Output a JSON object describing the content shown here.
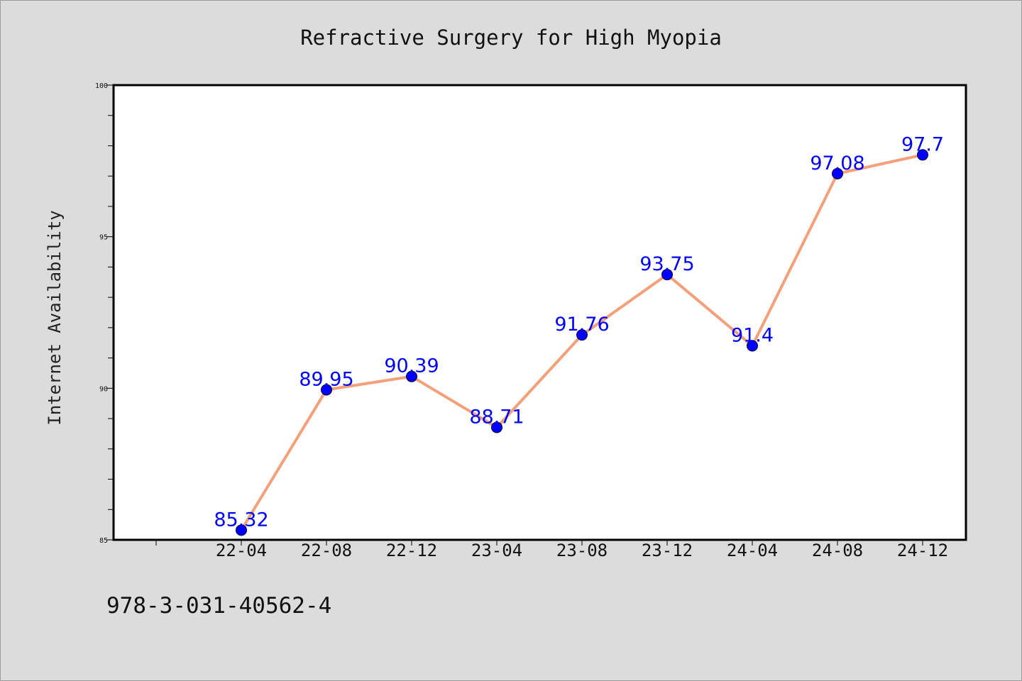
{
  "chart_data": {
    "type": "line",
    "title": "Refractive Surgery for High Myopia",
    "ylabel": "Internet Availability",
    "xlabel": "",
    "categories": [
      "22-04",
      "22-08",
      "22-12",
      "23-04",
      "23-08",
      "23-12",
      "24-04",
      "24-08",
      "24-12"
    ],
    "values": [
      85.32,
      89.95,
      90.39,
      88.71,
      91.76,
      93.75,
      91.4,
      97.08,
      97.7
    ],
    "data_labels": [
      "85.32",
      "89.95",
      "90.39",
      "88.71",
      "91.76",
      "93.75",
      "91.4",
      "97.08",
      "97.7"
    ],
    "ylim": [
      85,
      100
    ],
    "y_ticks": [
      "85",
      "90",
      "95",
      "100"
    ],
    "grid": false,
    "legend": "none",
    "colors": {
      "line": "#f4a07a",
      "marker": "#0000ff",
      "data_label": "#0000ff",
      "background": "#dcdcdc",
      "plot_area": "#ffffff"
    }
  },
  "footnote": "978-3-031-40562-4"
}
